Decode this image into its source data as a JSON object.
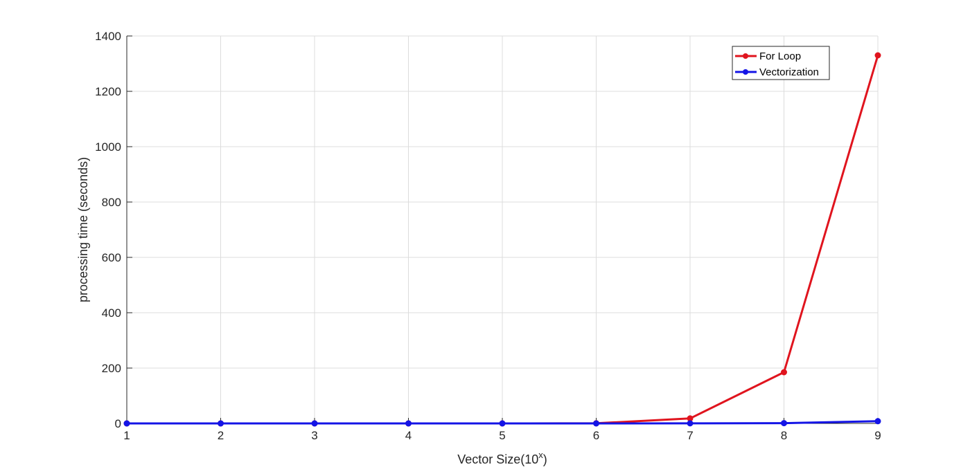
{
  "chart_data": {
    "type": "line",
    "title": "",
    "xlabel": "Vector Size(10",
    "xlabel_sup": "x",
    "xlabel_end": ")",
    "ylabel": "processing time (seconds)",
    "x": [
      1,
      2,
      3,
      4,
      5,
      6,
      7,
      8,
      9
    ],
    "xlim": [
      1,
      9
    ],
    "ylim": [
      0,
      1400
    ],
    "xticks": [
      "1",
      "2",
      "3",
      "4",
      "5",
      "6",
      "7",
      "8",
      "9"
    ],
    "yticks": [
      "0",
      "200",
      "400",
      "600",
      "800",
      "1000",
      "1200",
      "1400"
    ],
    "grid": true,
    "legend_position": "top-right",
    "series": [
      {
        "name": "For Loop",
        "color": "#e0141e",
        "values": [
          0,
          0,
          0,
          0,
          0,
          0.5,
          18,
          185,
          1330
        ]
      },
      {
        "name": "Vectorization",
        "color": "#1414e6",
        "values": [
          0,
          0,
          0,
          0,
          0,
          0,
          0.3,
          1,
          8
        ]
      }
    ]
  }
}
